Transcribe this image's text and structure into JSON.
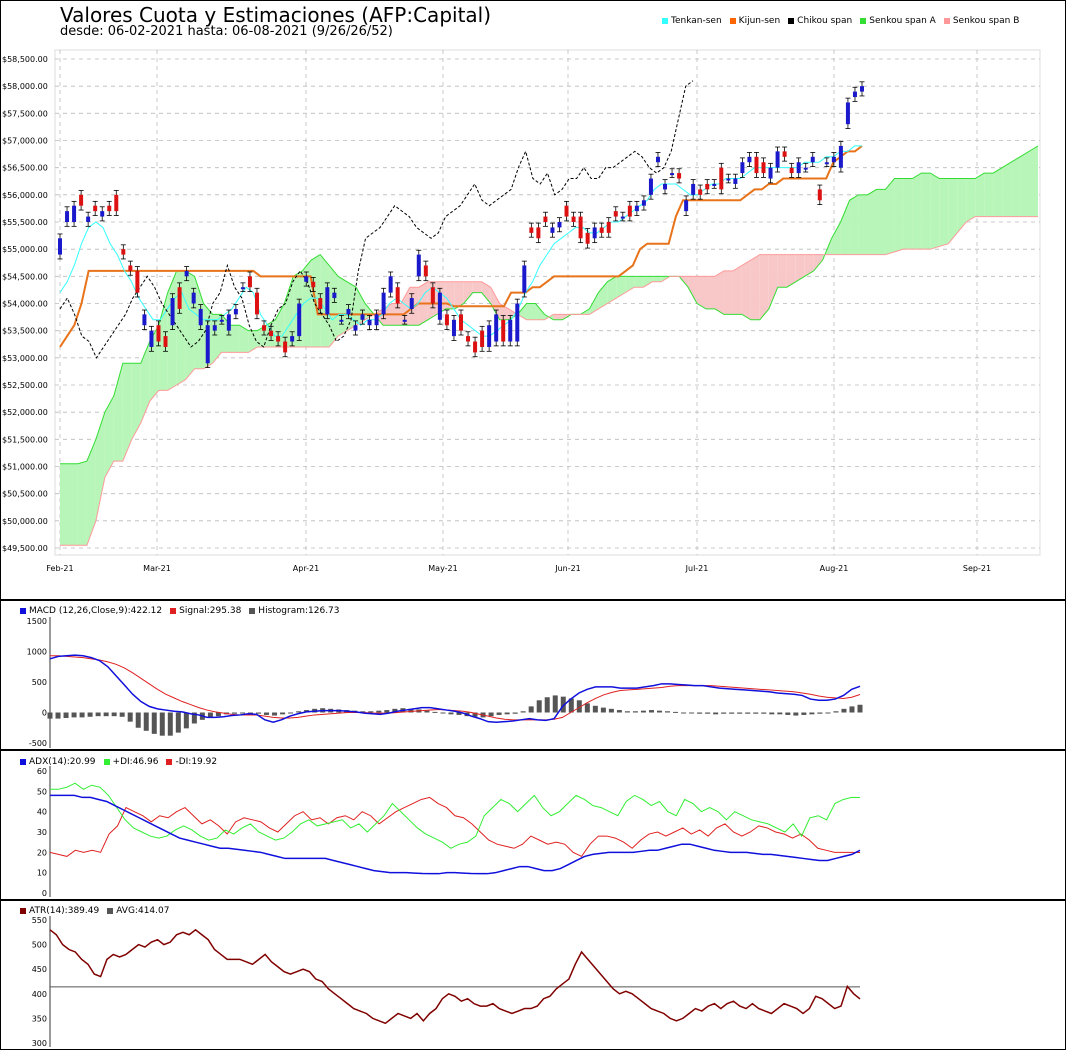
{
  "header": {
    "title": "Valores Cuota y Estimaciones (AFP:Capital)",
    "subtitle": "desde: 06-02-2021 hasta: 06-08-2021 (9/26/26/52)"
  },
  "legend": [
    {
      "label": "Tenkan-sen",
      "color": "#33ffff"
    },
    {
      "label": "Kijun-sen",
      "color": "#ff6600"
    },
    {
      "label": "Chikou span",
      "color": "#000000"
    },
    {
      "label": "Senkou span A",
      "color": "#33dd33"
    },
    {
      "label": "Senkou span B",
      "color": "#ff9999"
    }
  ],
  "colors": {
    "up_candle": "#1a1acc",
    "down_candle": "#dd1111",
    "tenkan": "#33ffff",
    "kijun": "#e8731a",
    "cloud_bull": "#b8f5b8",
    "cloud_bear": "#f8c8c8",
    "macd": "#1010dd",
    "signal": "#e02020",
    "histogram": "#555555",
    "adx": "#1010dd",
    "plus_di": "#33ee33",
    "minus_di": "#e02020",
    "atr": "#800000",
    "avg": "#555555"
  },
  "chart_data": [
    {
      "type": "candlestick",
      "name": "price",
      "y_ticks": [
        "$49,500.00",
        "$50,000.00",
        "$50,500.00",
        "$51,000.00",
        "$51,500.00",
        "$52,000.00",
        "$52,500.00",
        "$53,000.00",
        "$53,500.00",
        "$54,000.00",
        "$54,500.00",
        "$55,000.00",
        "$55,500.00",
        "$56,000.00",
        "$56,500.00",
        "$57,000.00",
        "$57,500.00",
        "$58,000.00",
        "$58,500.00"
      ],
      "ylim": [
        49500,
        58500
      ],
      "x_ticks": [
        "Feb-21",
        "Mar-21",
        "Apr-21",
        "May-21",
        "Jun-21",
        "Jul-21",
        "Aug-21",
        "Sep-21"
      ],
      "grid": true,
      "candles": [
        [
          54900,
          55200
        ],
        [
          55500,
          55700
        ],
        [
          55500,
          55800
        ],
        [
          56000,
          55800
        ],
        [
          55500,
          55600
        ],
        [
          55800,
          55700
        ],
        [
          55600,
          55700
        ],
        [
          55800,
          55700
        ],
        [
          56000,
          55700
        ],
        [
          55000,
          54900
        ],
        [
          54700,
          54600
        ],
        [
          54600,
          54200
        ],
        [
          53600,
          53800
        ],
        [
          53200,
          53500
        ],
        [
          53600,
          53300
        ],
        [
          53400,
          53200
        ],
        [
          53600,
          54100
        ],
        [
          54300,
          53900
        ],
        [
          54500,
          54600
        ],
        [
          54000,
          54200
        ],
        [
          53600,
          53900
        ],
        [
          52900,
          53600
        ],
        [
          53500,
          53600
        ],
        [
          53700,
          53700
        ],
        [
          53500,
          53800
        ],
        [
          53800,
          53900
        ],
        [
          54300,
          54300
        ],
        [
          54500,
          54300
        ],
        [
          54200,
          53800
        ],
        [
          53600,
          53500
        ],
        [
          53500,
          53400
        ],
        [
          53400,
          53300
        ],
        [
          53300,
          53100
        ],
        [
          53300,
          53400
        ],
        [
          53400,
          54000
        ],
        [
          54400,
          54500
        ],
        [
          54400,
          54300
        ],
        [
          54100,
          53900
        ],
        [
          53800,
          54300
        ],
        [
          54100,
          54200
        ],
        [
          53700,
          53700
        ],
        [
          53800,
          53900
        ],
        [
          53500,
          53600
        ],
        [
          53700,
          53800
        ],
        [
          53600,
          53700
        ],
        [
          53600,
          53800
        ],
        [
          53800,
          54200
        ],
        [
          54200,
          54500
        ],
        [
          54300,
          54000
        ],
        [
          53700,
          53700
        ],
        [
          53900,
          54100
        ],
        [
          54500,
          54900
        ],
        [
          54700,
          54500
        ],
        [
          54300,
          54000
        ],
        [
          53700,
          54200
        ],
        [
          53800,
          53600
        ],
        [
          53400,
          53700
        ],
        [
          53800,
          53500
        ],
        [
          53400,
          53300
        ],
        [
          53300,
          53100
        ],
        [
          53500,
          53200
        ],
        [
          53200,
          53600
        ],
        [
          53300,
          53800
        ],
        [
          53700,
          53300
        ],
        [
          53300,
          53700
        ],
        [
          53300,
          54000
        ],
        [
          54200,
          54700
        ],
        [
          55400,
          55300
        ],
        [
          55400,
          55200
        ],
        [
          55600,
          55500
        ],
        [
          55300,
          55400
        ],
        [
          55400,
          55500
        ],
        [
          55800,
          55600
        ],
        [
          55600,
          55500
        ],
        [
          55600,
          55200
        ],
        [
          55300,
          55100
        ],
        [
          55200,
          55400
        ],
        [
          55400,
          55300
        ],
        [
          55500,
          55300
        ],
        [
          55700,
          55600
        ],
        [
          55600,
          55600
        ],
        [
          55800,
          55600
        ],
        [
          55700,
          55800
        ],
        [
          55800,
          55900
        ],
        [
          56000,
          56300
        ],
        [
          56600,
          56700
        ],
        [
          56100,
          56200
        ],
        [
          56400,
          56400
        ],
        [
          56400,
          56300
        ],
        [
          55700,
          55900
        ],
        [
          56000,
          56200
        ],
        [
          56100,
          56000
        ],
        [
          56200,
          56100
        ],
        [
          56200,
          56200
        ],
        [
          56500,
          56100
        ],
        [
          56300,
          56300
        ],
        [
          56200,
          56300
        ],
        [
          56400,
          56600
        ],
        [
          56600,
          56700
        ],
        [
          56700,
          56400
        ],
        [
          56600,
          56400
        ],
        [
          56300,
          56500
        ],
        [
          56500,
          56800
        ],
        [
          56800,
          56700
        ],
        [
          56500,
          56400
        ],
        [
          56400,
          56600
        ],
        [
          56500,
          56500
        ],
        [
          56600,
          56700
        ],
        [
          56100,
          55900
        ],
        [
          56600,
          56600
        ],
        [
          56600,
          56700
        ],
        [
          56500,
          56900
        ],
        [
          57300,
          57700
        ],
        [
          57800,
          57900
        ],
        [
          57900,
          58000
        ]
      ]
    },
    {
      "type": "line",
      "name": "macd-panel",
      "legend": [
        "MACD (12,26,Close,9):422.12",
        "Signal:295.38",
        "Histogram:126.73"
      ],
      "y_ticks": [
        "1500",
        "1000",
        "500",
        "0",
        "-500"
      ],
      "ylim": [
        -500,
        1500
      ]
    },
    {
      "type": "line",
      "name": "adx-panel",
      "legend": [
        "ADX(14):20.99",
        "+DI:46.96",
        "-DI:19.92"
      ],
      "y_ticks": [
        "60",
        "50",
        "40",
        "30",
        "20",
        "10",
        "0"
      ],
      "ylim": [
        0,
        60
      ]
    },
    {
      "type": "line",
      "name": "atr-panel",
      "legend": [
        "ATR(14):389.49",
        "AVG:414.07"
      ],
      "y_ticks": [
        "550",
        "500",
        "450",
        "400",
        "350",
        "300"
      ],
      "ylim": [
        300,
        550
      ],
      "avg": 414.07
    }
  ]
}
